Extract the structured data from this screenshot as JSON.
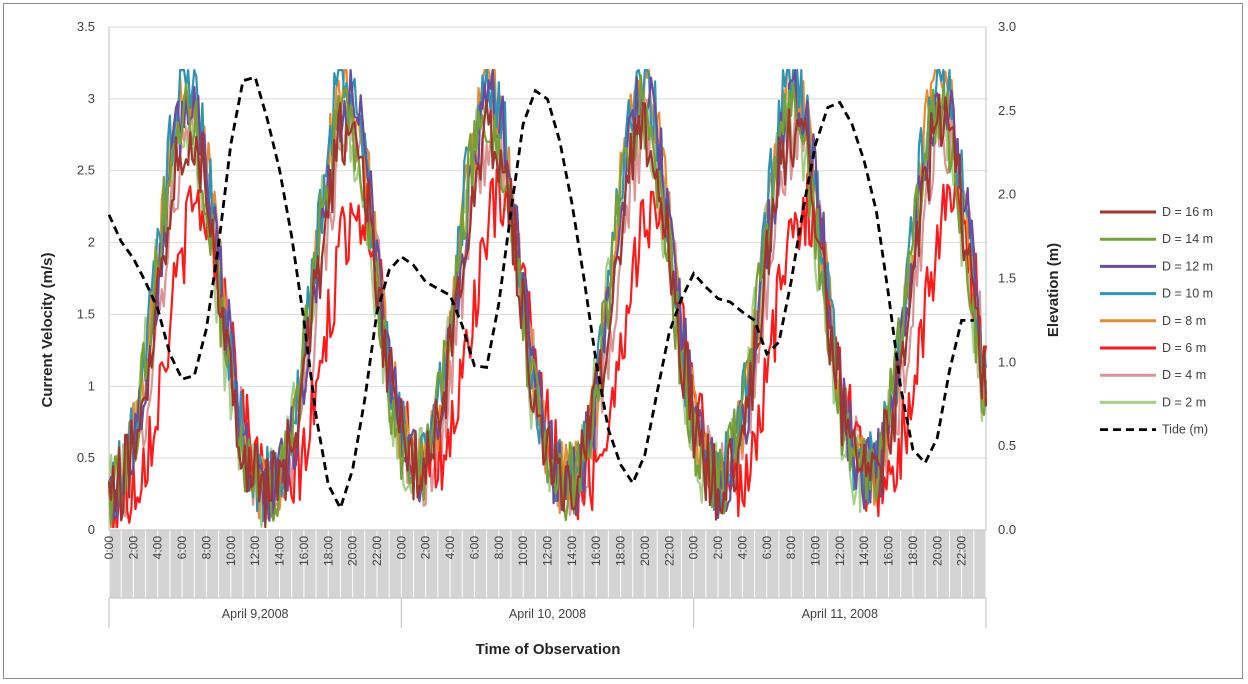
{
  "chart_data": {
    "type": "line",
    "xlabel": "Time of Observation",
    "ylabel": "Current Velocity (m/s)",
    "y2label": "Elevation (m)",
    "ylim": [
      0,
      3.5
    ],
    "y2lim": [
      0,
      3.0
    ],
    "yticks": [
      "0",
      "0.5",
      "1",
      "1.5",
      "2",
      "2.5",
      "3",
      "3.5"
    ],
    "y2ticks": [
      "0.0",
      "0.5",
      "1.0",
      "1.5",
      "2.0",
      "2.5",
      "3.0"
    ],
    "hour_labels": [
      "0:00",
      "2:00",
      "4:00",
      "6:00",
      "8:00",
      "10:00",
      "12:00",
      "14:00",
      "16:00",
      "18:00",
      "20:00",
      "22:00"
    ],
    "days": [
      "April 9,2008",
      "April 10, 2008",
      "April 11, 2008"
    ],
    "grid": true,
    "legend_position": "right",
    "series": [
      {
        "name": "D = 16 m",
        "color": "#a0352f",
        "style": "solid",
        "peak": 2.65,
        "phase": 0.02
      },
      {
        "name": "D = 14 m",
        "color": "#76a035",
        "style": "solid",
        "peak": 2.75,
        "phase": -0.05
      },
      {
        "name": "D = 12 m",
        "color": "#6a4c9c",
        "style": "solid",
        "peak": 2.85,
        "phase": 0.05
      },
      {
        "name": "D = 10 m",
        "color": "#2f94b4",
        "style": "solid",
        "peak": 3.0,
        "phase": -0.02
      },
      {
        "name": "D = 8 m",
        "color": "#e98b2d",
        "style": "solid",
        "peak": 2.95,
        "phase": 0.0
      },
      {
        "name": "D = 6 m",
        "color": "#ff1a1a",
        "style": "solid",
        "peak": 2.1,
        "phase": 0.3
      },
      {
        "name": "D = 4 m",
        "color": "#d99694",
        "style": "solid",
        "peak": 2.6,
        "phase": 0.1
      },
      {
        "name": "D = 2 m",
        "color": "#a6cf8a",
        "style": "solid",
        "peak": 2.7,
        "phase": -0.08
      }
    ],
    "tide": {
      "name": "Tide (m)",
      "color": "#000000",
      "style": "dashed",
      "points": [
        [
          0,
          1.88
        ],
        [
          1,
          1.72
        ],
        [
          2,
          1.62
        ],
        [
          3,
          1.48
        ],
        [
          4,
          1.32
        ],
        [
          5,
          1.05
        ],
        [
          6,
          0.9
        ],
        [
          7,
          0.92
        ],
        [
          8,
          1.2
        ],
        [
          9,
          1.7
        ],
        [
          10,
          2.3
        ],
        [
          11,
          2.68
        ],
        [
          12,
          2.7
        ],
        [
          13,
          2.45
        ],
        [
          14,
          2.15
        ],
        [
          15,
          1.75
        ],
        [
          16,
          1.25
        ],
        [
          17,
          0.68
        ],
        [
          18,
          0.27
        ],
        [
          19,
          0.13
        ],
        [
          20,
          0.36
        ],
        [
          21,
          0.78
        ],
        [
          22,
          1.3
        ],
        [
          23,
          1.55
        ],
        [
          24,
          1.63
        ],
        [
          25,
          1.58
        ],
        [
          26,
          1.48
        ],
        [
          27,
          1.44
        ],
        [
          28,
          1.4
        ],
        [
          29,
          1.22
        ],
        [
          30,
          0.98
        ],
        [
          31,
          0.97
        ],
        [
          32,
          1.35
        ],
        [
          33,
          1.9
        ],
        [
          34,
          2.42
        ],
        [
          35,
          2.62
        ],
        [
          36,
          2.57
        ],
        [
          37,
          2.32
        ],
        [
          38,
          1.95
        ],
        [
          39,
          1.5
        ],
        [
          40,
          1.0
        ],
        [
          41,
          0.6
        ],
        [
          42,
          0.39
        ],
        [
          43,
          0.28
        ],
        [
          44,
          0.45
        ],
        [
          45,
          0.82
        ],
        [
          46,
          1.18
        ],
        [
          47,
          1.38
        ],
        [
          48,
          1.53
        ],
        [
          49,
          1.45
        ],
        [
          50,
          1.38
        ],
        [
          51,
          1.36
        ],
        [
          52,
          1.3
        ],
        [
          53,
          1.25
        ],
        [
          54,
          1.05
        ],
        [
          55,
          1.12
        ],
        [
          56,
          1.48
        ],
        [
          57,
          1.92
        ],
        [
          58,
          2.3
        ],
        [
          59,
          2.52
        ],
        [
          60,
          2.55
        ],
        [
          61,
          2.42
        ],
        [
          62,
          2.2
        ],
        [
          63,
          1.9
        ],
        [
          64,
          1.4
        ],
        [
          65,
          0.85
        ],
        [
          66,
          0.48
        ],
        [
          67,
          0.4
        ],
        [
          68,
          0.55
        ],
        [
          69,
          0.95
        ],
        [
          70,
          1.25
        ],
        [
          71,
          1.25
        ]
      ]
    }
  }
}
